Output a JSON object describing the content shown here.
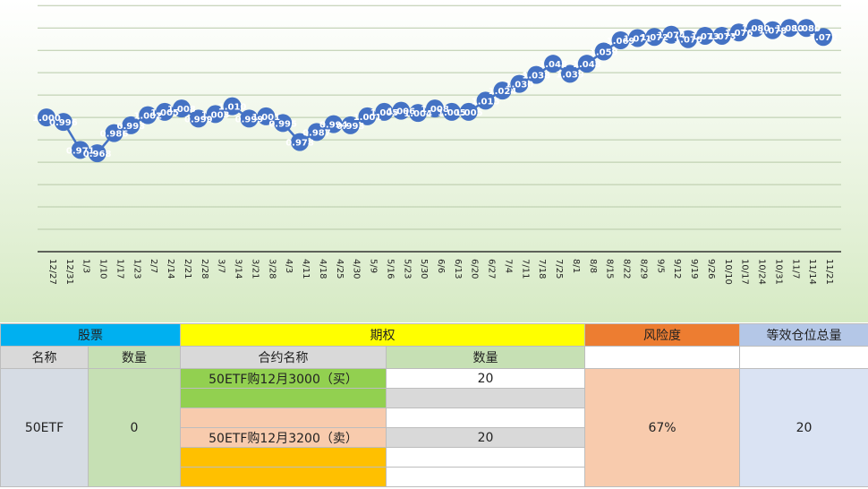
{
  "chart_data": {
    "type": "line",
    "title": "",
    "xlabel": "",
    "ylabel": "",
    "ylim": [
      0.88,
      1.105
    ],
    "grid": true,
    "legend": "none",
    "series_color": "#4472c4",
    "x": [
      "12/27",
      "12/31",
      "1/3",
      "1/10",
      "1/17",
      "1/23",
      "2/7",
      "2/14",
      "2/21",
      "2/28",
      "3/7",
      "3/14",
      "3/21",
      "3/28",
      "4/3",
      "4/11",
      "4/18",
      "4/25",
      "4/30",
      "5/9",
      "5/16",
      "5/23",
      "5/30",
      "6/6",
      "6/13",
      "6/20",
      "6/27",
      "7/4",
      "7/11",
      "7/18",
      "7/25",
      "8/1",
      "8/8",
      "8/15",
      "8/22",
      "8/29",
      "9/5",
      "9/12",
      "9/19",
      "9/26",
      "10/10",
      "10/17",
      "10/24",
      "10/31",
      "11/7",
      "11/14",
      "11/21"
    ],
    "series": [
      {
        "values": [
          1.0,
          0.996,
          0.971,
          0.968,
          0.986,
          0.993,
          1.002,
          1.005,
          1.008,
          0.999,
          1.003,
          1.01,
          0.999,
          1.001,
          0.995,
          0.978,
          0.987,
          0.994,
          0.993,
          1.001,
          1.005,
          1.006,
          1.004,
          1.008,
          1.005,
          1.005,
          1.015,
          1.024,
          1.03,
          1.038,
          1.048,
          1.039,
          1.048,
          1.059,
          1.069,
          1.071,
          1.072,
          1.074,
          1.07,
          1.073,
          1.073,
          1.076,
          1.08,
          1.078,
          1.08,
          1.08,
          1.072
        ],
        "labels": [
          "1.000",
          "0.996",
          "0.971",
          "0.968",
          "0.986",
          "0.993",
          "1.002",
          "1.005",
          "1.008",
          "0.999",
          "1.003",
          "1.010",
          "0.999",
          "1.001",
          "0.995",
          "0.978",
          "0.987",
          "0.994",
          "0.993",
          "1.001",
          "1.005",
          "1.006",
          "1.004",
          "1.008",
          "1.005",
          "1.005",
          "1.015",
          "1.024",
          "1.030",
          "1.038",
          "1.048",
          "1.039",
          "1.048",
          "1.059",
          "1.069",
          "1.071",
          "1.072",
          "1.074",
          "1.070",
          "1.073",
          "1.073",
          "1.076",
          "1.080",
          "1.078",
          "1.080",
          "1.080",
          "1.072"
        ]
      }
    ]
  },
  "table": {
    "headers": {
      "stock": "股票",
      "option": "期权",
      "risk": "风险度",
      "equiv": "等效仓位总量"
    },
    "subheaders": {
      "name": "名称",
      "qty": "数量",
      "contract": "合约名称",
      "option_qty": "数量"
    },
    "stock": {
      "name": "50ETF",
      "qty": "0"
    },
    "options": [
      {
        "contract": "50ETF购12月3000（买）",
        "qty": "20"
      },
      {
        "contract": "",
        "qty": ""
      },
      {
        "contract": "",
        "qty": ""
      },
      {
        "contract": "50ETF购12月3200（卖）",
        "qty": "20"
      },
      {
        "contract": "",
        "qty": ""
      },
      {
        "contract": "",
        "qty": ""
      }
    ],
    "risk": "67%",
    "equiv": "20"
  }
}
